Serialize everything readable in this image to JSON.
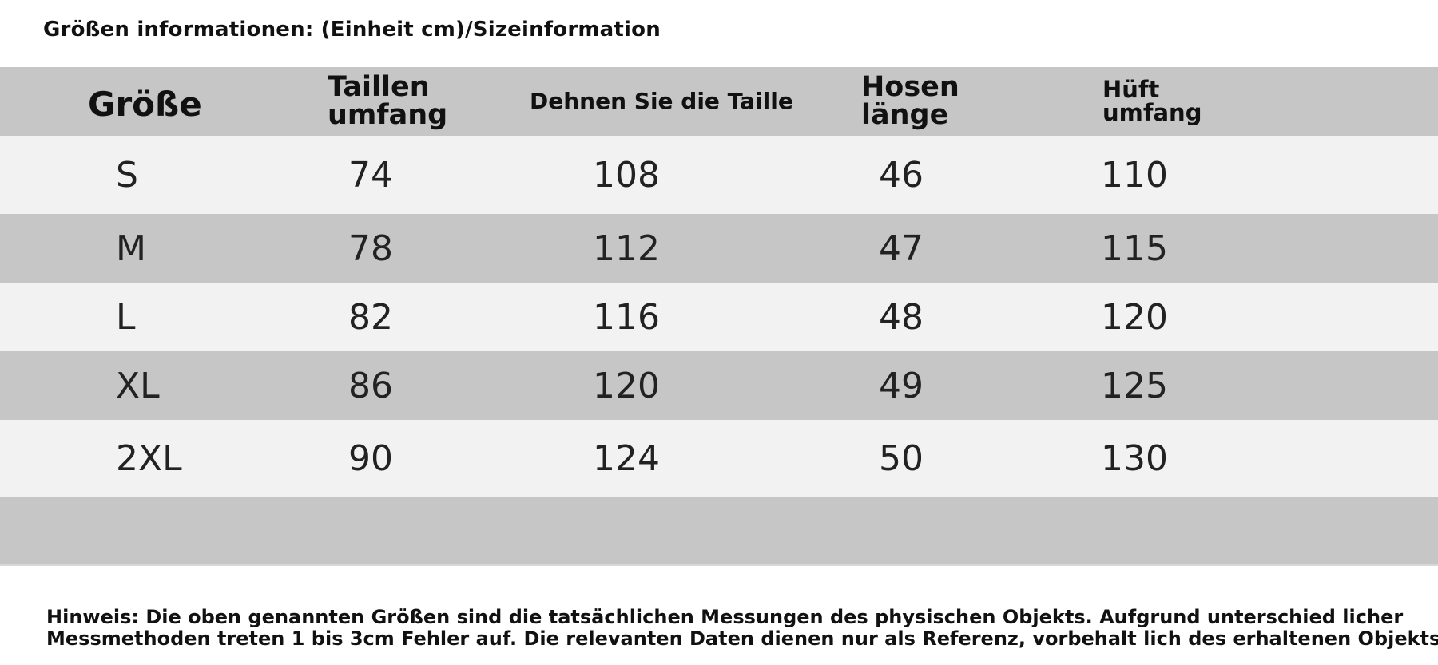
{
  "heading": "Größen informationen: (Einheit cm)/Sizeinformation",
  "table": {
    "headers": {
      "size": [
        "Größe"
      ],
      "waist": [
        "Taillen",
        "umfang"
      ],
      "stretch": [
        "Dehnen Sie die Taille"
      ],
      "length": [
        "Hosen",
        "länge"
      ],
      "hip": [
        "Hüft",
        "umfang"
      ]
    },
    "rows": [
      {
        "size": "S",
        "waist": "74",
        "stretch": "108",
        "length": "46",
        "hip": "110"
      },
      {
        "size": "M",
        "waist": "78",
        "stretch": "112",
        "length": "47",
        "hip": "115"
      },
      {
        "size": "L",
        "waist": "82",
        "stretch": "116",
        "length": "48",
        "hip": "120"
      },
      {
        "size": "XL",
        "waist": "86",
        "stretch": "120",
        "length": "49",
        "hip": "125"
      },
      {
        "size": "2XL",
        "waist": "90",
        "stretch": "124",
        "length": "50",
        "hip": "130"
      }
    ]
  },
  "note": {
    "line1": "Hinweis: Die oben genannten Größen sind die tatsächlichen Messungen des physischen Objekts. Aufgrund unterschied licher",
    "line2": "Messmethoden treten 1 bis 3cm Fehler auf. Die relevanten Daten dienen nur als Referenz, vorbehalt lich des erhaltenen Objekts"
  }
}
